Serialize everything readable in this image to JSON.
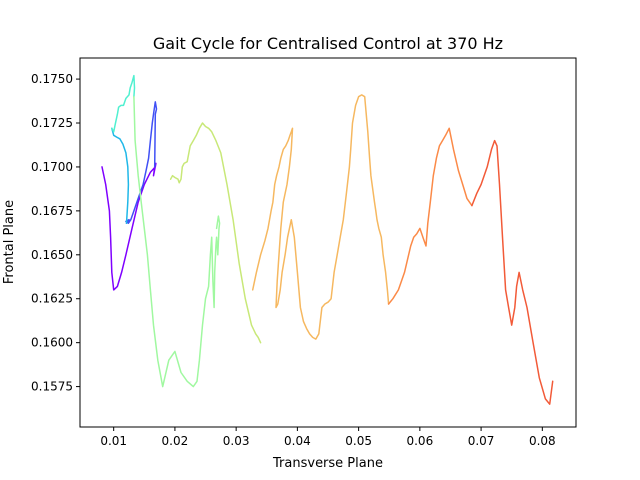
{
  "chart_data": {
    "type": "line",
    "title": "Gait Cycle for Centralised Control at 370 Hz",
    "xlabel": "Transverse Plane",
    "ylabel": "Frontal Plane",
    "xlim": [
      0.0045,
      0.0855
    ],
    "ylim": [
      0.1552,
      0.1762
    ],
    "xticks": [
      0.01,
      0.02,
      0.03,
      0.04,
      0.05,
      0.06,
      0.07,
      0.08
    ],
    "xtick_labels": [
      "0.01",
      "0.02",
      "0.03",
      "0.04",
      "0.05",
      "0.06",
      "0.07",
      "0.08"
    ],
    "yticks": [
      0.1575,
      0.16,
      0.1625,
      0.165,
      0.1675,
      0.17,
      0.1725,
      0.175
    ],
    "ytick_labels": [
      "0.1575",
      "0.1600",
      "0.1625",
      "0.1650",
      "0.1675",
      "0.1700",
      "0.1725",
      "0.1750"
    ],
    "grid": false,
    "legend": "none",
    "colormap": "rainbow",
    "series": [
      {
        "color": "#7f00ff",
        "x": [
          0.0081,
          0.0087,
          0.0093,
          0.0095,
          0.0097,
          0.01,
          0.0106,
          0.0113,
          0.012,
          0.013,
          0.014,
          0.015,
          0.016,
          0.0168,
          0.0169,
          0.0165,
          0.0167
        ],
        "y": [
          0.17,
          0.169,
          0.1675,
          0.166,
          0.164,
          0.163,
          0.1632,
          0.164,
          0.165,
          0.1665,
          0.168,
          0.169,
          0.1697,
          0.17,
          0.1702,
          0.1695,
          0.17
        ]
      },
      {
        "color": "#4050f5",
        "x": [
          0.0167,
          0.0168,
          0.017,
          0.0168,
          0.0165,
          0.0163,
          0.016,
          0.0157,
          0.0153,
          0.0148,
          0.0143,
          0.0138,
          0.0133,
          0.0128,
          0.0124,
          0.012,
          0.0125,
          0.0121
        ],
        "y": [
          0.17,
          0.173,
          0.1733,
          0.1737,
          0.173,
          0.1725,
          0.1715,
          0.1705,
          0.1698,
          0.169,
          0.1685,
          0.168,
          0.1675,
          0.167,
          0.1668,
          0.1669,
          0.167,
          0.1668
        ]
      },
      {
        "color": "#20b8e8",
        "x": [
          0.0121,
          0.0123,
          0.0124,
          0.0123,
          0.012,
          0.0115,
          0.011,
          0.0105,
          0.01,
          0.0097
        ],
        "y": [
          0.1668,
          0.168,
          0.169,
          0.17,
          0.1708,
          0.1713,
          0.1716,
          0.1717,
          0.1718,
          0.1722
        ]
      },
      {
        "color": "#50f0d0",
        "x": [
          0.0097,
          0.01,
          0.0103,
          0.0106,
          0.0108,
          0.0112,
          0.0116,
          0.012,
          0.0125,
          0.0127,
          0.013,
          0.0133,
          0.0134,
          0.0133
        ],
        "y": [
          0.1722,
          0.172,
          0.1725,
          0.173,
          0.1734,
          0.1735,
          0.1735,
          0.1739,
          0.1741,
          0.1745,
          0.1748,
          0.1752,
          0.1745,
          0.174
        ]
      },
      {
        "color": "#a0f8a0",
        "x": [
          0.0133,
          0.0135,
          0.014,
          0.0145,
          0.015,
          0.0155,
          0.016,
          0.0165,
          0.0172,
          0.018,
          0.019,
          0.02,
          0.021,
          0.022,
          0.023,
          0.0236,
          0.024,
          0.0245,
          0.025,
          0.0255,
          0.0258,
          0.026,
          0.0262,
          0.0264,
          0.0265,
          0.0267,
          0.0268,
          0.027,
          0.0272,
          0.0273,
          0.0271,
          0.0268
        ],
        "y": [
          0.174,
          0.1715,
          0.1695,
          0.168,
          0.1665,
          0.165,
          0.163,
          0.161,
          0.159,
          0.1575,
          0.159,
          0.1595,
          0.1583,
          0.1578,
          0.1575,
          0.1578,
          0.159,
          0.161,
          0.1625,
          0.1632,
          0.165,
          0.166,
          0.1635,
          0.162,
          0.164,
          0.1655,
          0.166,
          0.165,
          0.1665,
          0.1668,
          0.1672,
          0.1665
        ]
      },
      {
        "color": "#c8e878",
        "x": [
          0.0193,
          0.0196,
          0.02,
          0.0205,
          0.0207,
          0.021,
          0.0212,
          0.0215,
          0.022,
          0.0225,
          0.023,
          0.0235,
          0.024,
          0.0245,
          0.025,
          0.0255,
          0.026,
          0.0267,
          0.0275,
          0.0285,
          0.0295,
          0.0305,
          0.0315,
          0.0325,
          0.0332,
          0.0336,
          0.034
        ],
        "y": [
          0.1693,
          0.1695,
          0.1694,
          0.1693,
          0.1691,
          0.1693,
          0.17,
          0.1702,
          0.1703,
          0.1712,
          0.1715,
          0.1718,
          0.1722,
          0.1725,
          0.1723,
          0.1722,
          0.172,
          0.1715,
          0.1708,
          0.169,
          0.167,
          0.1645,
          0.1625,
          0.161,
          0.1605,
          0.1603,
          0.16
        ]
      },
      {
        "color": "#f6b860",
        "x": [
          0.0327,
          0.0333,
          0.034,
          0.0347,
          0.0352,
          0.0357,
          0.036,
          0.0363,
          0.0366,
          0.037,
          0.0373,
          0.0377,
          0.0381,
          0.0385,
          0.0388,
          0.039,
          0.0392,
          0.039,
          0.0387,
          0.0383,
          0.0377,
          0.0373,
          0.037,
          0.0367,
          0.0365,
          0.0368,
          0.0372,
          0.0375,
          0.038,
          0.0384,
          0.039,
          0.0395,
          0.04,
          0.0405,
          0.041,
          0.0415,
          0.042,
          0.0425,
          0.043,
          0.0435,
          0.044,
          0.0445,
          0.045,
          0.0455,
          0.046,
          0.0465,
          0.047,
          0.0475,
          0.048,
          0.0485,
          0.0487,
          0.049,
          0.0495,
          0.05,
          0.0505,
          0.051,
          0.0515,
          0.0518,
          0.052,
          0.0522,
          0.0524,
          0.0526,
          0.0528,
          0.053,
          0.0533,
          0.0537,
          0.054,
          0.0544,
          0.0547,
          0.0549
        ],
        "y": [
          0.163,
          0.164,
          0.165,
          0.1658,
          0.1665,
          0.1675,
          0.168,
          0.169,
          0.1695,
          0.17,
          0.1705,
          0.171,
          0.1712,
          0.1715,
          0.1718,
          0.172,
          0.1722,
          0.171,
          0.17,
          0.169,
          0.168,
          0.1665,
          0.165,
          0.1635,
          0.162,
          0.1622,
          0.163,
          0.164,
          0.165,
          0.166,
          0.167,
          0.166,
          0.164,
          0.162,
          0.1612,
          0.1608,
          0.1605,
          0.1603,
          0.1602,
          0.1605,
          0.162,
          0.1622,
          0.1623,
          0.1625,
          0.164,
          0.165,
          0.166,
          0.167,
          0.1685,
          0.17,
          0.171,
          0.1725,
          0.1735,
          0.174,
          0.1741,
          0.174,
          0.172,
          0.1705,
          0.1695,
          0.169,
          0.1685,
          0.168,
          0.1675,
          0.167,
          0.1665,
          0.166,
          0.165,
          0.164,
          0.163,
          0.1622
        ]
      },
      {
        "color": "#fb8a48",
        "x": [
          0.0549,
          0.0556,
          0.0565,
          0.0575,
          0.0585,
          0.059,
          0.0595,
          0.06,
          0.0605,
          0.061,
          0.0613,
          0.0617,
          0.0622,
          0.0627,
          0.0632,
          0.0637,
          0.0642,
          0.0648,
          0.0655,
          0.0663,
          0.067,
          0.0677,
          0.0685
        ],
        "y": [
          0.1622,
          0.1625,
          0.163,
          0.164,
          0.1655,
          0.166,
          0.1662,
          0.1665,
          0.166,
          0.1655,
          0.1668,
          0.168,
          0.1695,
          0.1705,
          0.1712,
          0.1715,
          0.1718,
          0.1722,
          0.171,
          0.1698,
          0.169,
          0.1682,
          0.1678
        ]
      },
      {
        "color": "#f25a38",
        "x": [
          0.0685,
          0.0693,
          0.07,
          0.071,
          0.0717,
          0.0722,
          0.0726,
          0.073,
          0.0735,
          0.074,
          0.0745,
          0.075,
          0.0755,
          0.0758,
          0.0762,
          0.0768,
          0.0775,
          0.0785,
          0.0795,
          0.0805,
          0.0812,
          0.0817
        ],
        "y": [
          0.1678,
          0.1685,
          0.169,
          0.17,
          0.171,
          0.1715,
          0.1712,
          0.169,
          0.166,
          0.163,
          0.162,
          0.161,
          0.162,
          0.1632,
          0.164,
          0.163,
          0.162,
          0.16,
          0.158,
          0.1568,
          0.1565,
          0.1578
        ]
      }
    ]
  }
}
